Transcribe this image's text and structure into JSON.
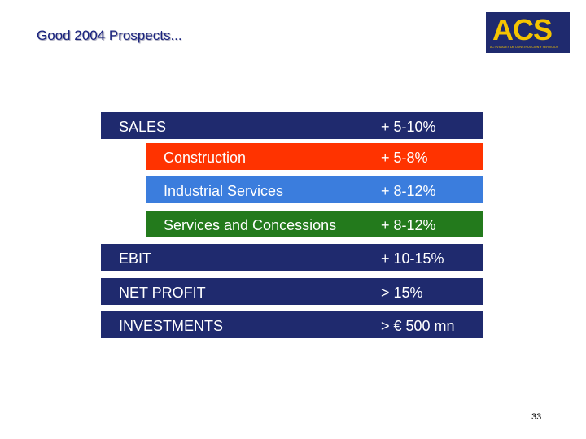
{
  "header": {
    "title": "Good 2004 Prospects...",
    "logo": {
      "name": "ACS",
      "tagline": "ACTIVIDADES DE CONSTRUCCION Y SERVICIOS"
    }
  },
  "table": {
    "rows": [
      [
        "SALES",
        "+ 5-10%"
      ],
      [
        "Construction",
        "+ 5-8%"
      ],
      [
        "Industrial Services",
        "+ 8-12%"
      ],
      [
        "Services and Concessions",
        "+ 8-12%"
      ],
      [
        "EBIT",
        "+ 10-15%"
      ],
      [
        "NET PROFIT",
        "> 15%"
      ],
      [
        "INVESTMENTS",
        "> € 500 mn"
      ]
    ]
  },
  "footer": {
    "page_number": "33"
  }
}
